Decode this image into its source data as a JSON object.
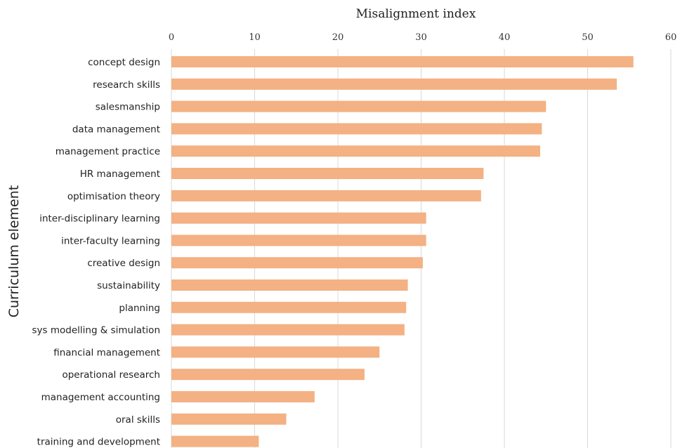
{
  "chart_data": {
    "type": "bar",
    "orientation": "horizontal",
    "xlabel": "Misalignment index",
    "ylabel": "Curriculum element",
    "xlim": [
      0,
      60
    ],
    "xticks": [
      "0",
      "10",
      "20",
      "30",
      "40",
      "50",
      "60"
    ],
    "x_axis_position": "top",
    "grid": "vertical",
    "bar_color": "#f4b183",
    "categories": [
      "concept design",
      "research skills",
      "salesmanship",
      "data management",
      "management practice",
      "HR management",
      "optimisation theory",
      "inter-disciplinary learning",
      "inter-faculty learning",
      "creative design",
      "sustainability",
      "planning",
      "sys modelling & simulation",
      "financial management",
      "operational research",
      "management accounting",
      "oral skills",
      "training and development"
    ],
    "values": [
      55.5,
      53.5,
      45,
      44.5,
      44.3,
      37.5,
      37.2,
      30.6,
      30.6,
      30.2,
      28.4,
      28.2,
      28,
      25,
      23.2,
      17.2,
      13.8,
      10.5
    ]
  }
}
